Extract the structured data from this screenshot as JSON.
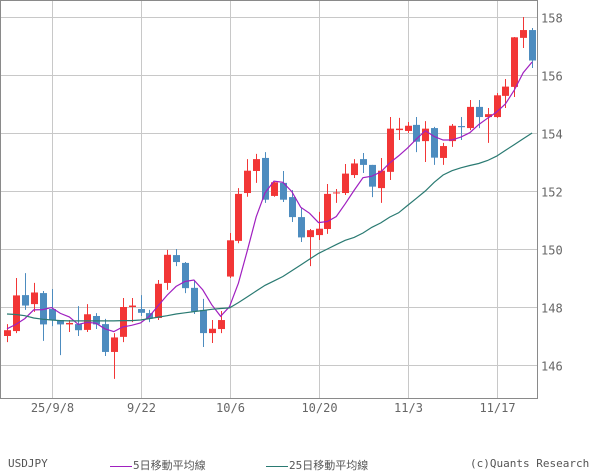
{
  "chart_data": {
    "type": "candlestick",
    "symbol": "USDJPY",
    "x_tick_labels": [
      "25/9/8",
      "9/22",
      "10/6",
      "10/20",
      "11/3",
      "11/17"
    ],
    "y_ticks": [
      146,
      148,
      150,
      152,
      154,
      156,
      158
    ],
    "ylim": [
      145.4,
      158.6
    ],
    "grid": true,
    "colors": {
      "up": "#f23636",
      "down": "#4d8cbf",
      "ma5": "#a020c0",
      "ma25": "#2a7a72"
    },
    "dates": [
      "9/1",
      "9/2",
      "9/3",
      "9/4",
      "9/5",
      "9/8",
      "9/9",
      "9/10",
      "9/11",
      "9/12",
      "9/15",
      "9/16",
      "9/17",
      "9/18",
      "9/19",
      "9/22",
      "9/23",
      "9/24",
      "9/25",
      "9/26",
      "9/29",
      "9/30",
      "10/1",
      "10/2",
      "10/3",
      "10/6",
      "10/7",
      "10/8",
      "10/9",
      "10/10",
      "10/13",
      "10/14",
      "10/15",
      "10/16",
      "10/17",
      "10/20",
      "10/21",
      "10/22",
      "10/23",
      "10/24",
      "10/27",
      "10/28",
      "10/29",
      "10/30",
      "10/31",
      "11/3",
      "11/4",
      "11/5",
      "11/6",
      "11/7",
      "11/10",
      "11/11",
      "11/12",
      "11/13",
      "11/14",
      "11/17",
      "11/18",
      "11/19",
      "11/20",
      "11/21"
    ],
    "open": [
      147.0,
      147.17,
      148.41,
      148.1,
      148.48,
      147.93,
      147.55,
      147.4,
      147.41,
      147.21,
      147.69,
      147.41,
      146.45,
      146.97,
      148.0,
      147.93,
      147.79,
      147.62,
      148.83,
      149.79,
      149.52,
      148.66,
      147.9,
      147.1,
      147.24,
      149.05,
      150.28,
      151.93,
      152.69,
      153.14,
      151.83,
      152.28,
      151.79,
      151.1,
      150.41,
      150.48,
      150.69,
      151.93,
      151.93,
      152.55,
      153.1,
      152.9,
      152.1,
      152.66,
      154.1,
      154.07,
      154.28,
      153.72,
      154.17,
      153.14,
      153.72,
      154.24,
      154.17,
      154.9,
      154.55,
      154.55,
      155.28,
      155.59,
      157.28,
      157.55
    ],
    "high": [
      147.41,
      149.0,
      149.17,
      148.83,
      148.55,
      148.62,
      147.55,
      147.55,
      148.03,
      148.1,
      147.79,
      147.59,
      147.1,
      148.31,
      148.31,
      148.41,
      147.9,
      148.93,
      149.97,
      150.0,
      149.55,
      148.93,
      148.28,
      147.55,
      147.86,
      150.55,
      152.1,
      153.1,
      153.28,
      153.34,
      152.31,
      152.69,
      152.03,
      151.41,
      150.69,
      151.28,
      152.24,
      152.07,
      152.93,
      153.1,
      153.31,
      152.9,
      153.14,
      154.55,
      154.52,
      154.38,
      154.55,
      154.41,
      154.21,
      153.66,
      154.31,
      154.55,
      155.14,
      155.14,
      154.86,
      155.38,
      155.86,
      157.31,
      158.0,
      157.62
    ],
    "low": [
      146.79,
      147.1,
      147.9,
      147.83,
      146.83,
      147.34,
      146.34,
      147.14,
      147.0,
      147.14,
      147.24,
      146.31,
      145.52,
      146.79,
      147.48,
      147.69,
      147.48,
      147.55,
      148.59,
      149.41,
      148.48,
      147.76,
      146.62,
      146.76,
      147.1,
      149.0,
      150.2,
      151.8,
      152.28,
      151.59,
      151.8,
      151.62,
      150.93,
      150.24,
      149.41,
      150.31,
      150.52,
      151.59,
      151.86,
      152.45,
      152.62,
      151.79,
      151.59,
      152.38,
      153.76,
      154.0,
      153.34,
      153.0,
      152.9,
      152.9,
      153.52,
      153.76,
      154.1,
      154.17,
      153.66,
      154.52,
      154.86,
      155.24,
      156.93,
      156.24
    ],
    "close": [
      147.2,
      148.4,
      148.05,
      148.5,
      147.4,
      147.55,
      147.4,
      147.45,
      147.2,
      147.75,
      147.4,
      146.45,
      146.95,
      148.0,
      148.05,
      147.8,
      147.6,
      148.8,
      149.8,
      149.55,
      148.65,
      147.85,
      147.1,
      147.25,
      147.55,
      150.3,
      151.9,
      152.7,
      153.1,
      151.7,
      152.3,
      151.7,
      151.1,
      150.4,
      150.65,
      150.7,
      151.9,
      151.95,
      152.6,
      152.95,
      152.9,
      152.15,
      152.7,
      154.15,
      154.15,
      154.25,
      153.7,
      154.15,
      153.15,
      153.55,
      154.25,
      154.2,
      154.9,
      154.55,
      154.65,
      155.3,
      155.6,
      157.3,
      157.55,
      156.5
    ],
    "series": [
      {
        "name": "5日移動平均線",
        "values": [
          147.25,
          147.4,
          147.6,
          147.9,
          147.91,
          147.98,
          147.78,
          147.66,
          147.4,
          147.47,
          147.44,
          147.25,
          147.15,
          147.31,
          147.37,
          147.45,
          147.68,
          148.05,
          148.41,
          148.71,
          148.88,
          148.93,
          148.59,
          148.08,
          147.68,
          148.01,
          148.82,
          149.94,
          151.11,
          151.94,
          152.34,
          152.3,
          151.98,
          151.44,
          151.23,
          150.91,
          150.95,
          151.12,
          151.56,
          152.02,
          152.46,
          152.51,
          152.66,
          152.97,
          153.21,
          153.48,
          153.79,
          154.08,
          153.88,
          153.76,
          153.76,
          153.86,
          154.01,
          154.29,
          154.51,
          154.72,
          155.0,
          155.48,
          156.08,
          156.45
        ]
      },
      {
        "name": "25日移動平均線",
        "values": [
          147.76,
          147.74,
          147.7,
          147.62,
          147.58,
          147.55,
          147.53,
          147.52,
          147.52,
          147.52,
          147.52,
          147.52,
          147.52,
          147.53,
          147.53,
          147.55,
          147.6,
          147.65,
          147.7,
          147.76,
          147.8,
          147.84,
          147.88,
          147.92,
          147.95,
          147.97,
          148.15,
          148.35,
          148.55,
          148.75,
          148.9,
          149.05,
          149.25,
          149.45,
          149.65,
          149.85,
          150.0,
          150.15,
          150.3,
          150.4,
          150.55,
          150.75,
          150.9,
          151.1,
          151.25,
          151.5,
          151.75,
          152.0,
          152.3,
          152.55,
          152.7,
          152.8,
          152.88,
          152.95,
          153.05,
          153.2,
          153.4,
          153.6,
          153.8,
          154.0
        ]
      }
    ]
  },
  "footer": {
    "symbol": "USDJPY",
    "legend_ma5": "5日移動平均線",
    "legend_ma25": "25日移動平均線",
    "credit": "(c)Quants Research"
  }
}
